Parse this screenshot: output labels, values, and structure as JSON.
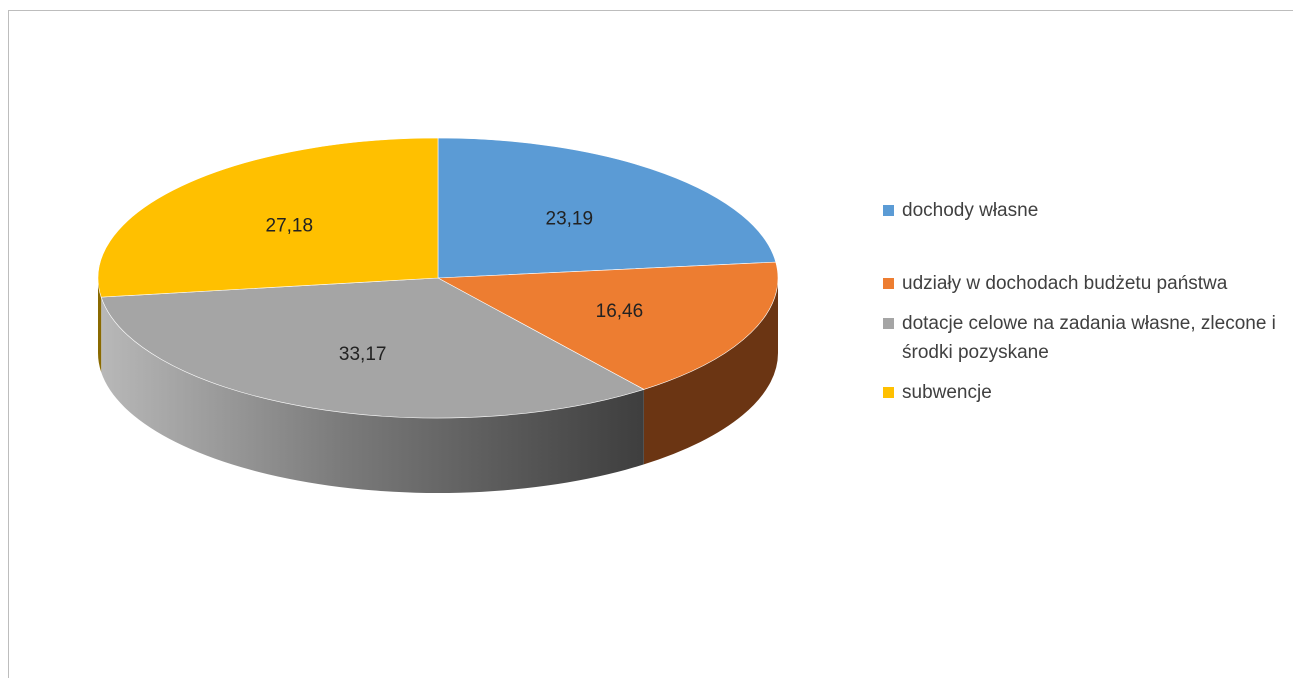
{
  "chart_data": {
    "type": "pie",
    "categories": [
      "dochody własne",
      "udziały w dochodach budżetu państwa",
      "dotacje celowe na zadania własne, zlecone i środki pozyskane",
      "subwencje"
    ],
    "values": [
      23.19,
      16.46,
      33.17,
      27.18
    ],
    "data_labels": [
      "23,19",
      "16,46",
      "33,17",
      "27,18"
    ],
    "colors": [
      "#5b9bd5",
      "#ed7d31",
      "#a5a5a5",
      "#ffc000"
    ],
    "side_colors": [
      "#2e5f8f",
      "#6b3513",
      "#555555",
      "#8a6a00"
    ],
    "legend_position": "right",
    "style": "3d",
    "title": ""
  },
  "legend": {
    "items": [
      {
        "label": "dochody własne",
        "color": "#5b9bd5"
      },
      {
        "label": "udziały w dochodach budżetu państwa",
        "color": "#ed7d31"
      },
      {
        "label": "dotacje celowe na zadania własne, zlecone i środki pozyskane",
        "color": "#a5a5a5"
      },
      {
        "label": "subwencje",
        "color": "#ffc000"
      }
    ]
  }
}
